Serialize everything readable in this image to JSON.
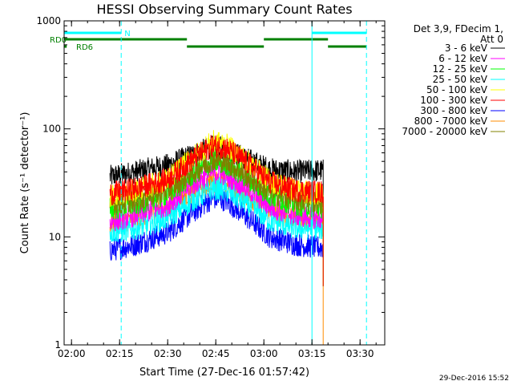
{
  "chart_data": {
    "type": "line",
    "title": "HESSI Observing Summary Count Rates",
    "xlabel": "Start Time (27-Dec-16 01:57:42)",
    "ylabel": "Count Rate (s⁻¹ detector⁻¹)",
    "y_scale": "log",
    "ylim": [
      1,
      1000
    ],
    "xlim": [
      "01:57:42",
      "03:37:42"
    ],
    "x_ticks": [
      "02:00",
      "02:15",
      "02:30",
      "02:45",
      "03:00",
      "03:15",
      "03:30"
    ],
    "y_ticks": [
      "1",
      "10",
      "100",
      "1000"
    ],
    "legend": {
      "header": [
        "Det 3,9, FDecim 1,",
        "Att 0"
      ],
      "placement": "right, outside plot"
    },
    "series": [
      {
        "name": "3 - 6 keV",
        "color": "#000000",
        "values": [
          {
            "x": "02:12",
            "y": 36
          },
          {
            "x": "02:20",
            "y": 40
          },
          {
            "x": "02:30",
            "y": 46
          },
          {
            "x": "02:38",
            "y": 58
          },
          {
            "x": "02:44",
            "y": 68
          },
          {
            "x": "02:48",
            "y": 66
          },
          {
            "x": "02:55",
            "y": 52
          },
          {
            "x": "03:02",
            "y": 42
          },
          {
            "x": "03:10",
            "y": 40
          },
          {
            "x": "03:17",
            "y": 41
          }
        ]
      },
      {
        "name": "6 - 12 keV",
        "color": "#ff00ff",
        "values": [
          {
            "x": "02:12",
            "y": 14
          },
          {
            "x": "02:20",
            "y": 16
          },
          {
            "x": "02:30",
            "y": 20
          },
          {
            "x": "02:38",
            "y": 31
          },
          {
            "x": "02:44",
            "y": 40
          },
          {
            "x": "02:48",
            "y": 38
          },
          {
            "x": "02:55",
            "y": 28
          },
          {
            "x": "03:02",
            "y": 19
          },
          {
            "x": "03:10",
            "y": 16
          },
          {
            "x": "03:17",
            "y": 15
          }
        ]
      },
      {
        "name": "12 - 25 keV",
        "color": "#00ff00",
        "values": [
          {
            "x": "02:12",
            "y": 18
          },
          {
            "x": "02:20",
            "y": 20
          },
          {
            "x": "02:30",
            "y": 25
          },
          {
            "x": "02:38",
            "y": 38
          },
          {
            "x": "02:44",
            "y": 50
          },
          {
            "x": "02:48",
            "y": 48
          },
          {
            "x": "02:55",
            "y": 35
          },
          {
            "x": "03:02",
            "y": 24
          },
          {
            "x": "03:10",
            "y": 20
          },
          {
            "x": "03:17",
            "y": 19
          }
        ]
      },
      {
        "name": "25 - 50 keV",
        "color": "#00ffff",
        "values": [
          {
            "x": "02:12",
            "y": 11
          },
          {
            "x": "02:20",
            "y": 12
          },
          {
            "x": "02:30",
            "y": 15
          },
          {
            "x": "02:38",
            "y": 22
          },
          {
            "x": "02:44",
            "y": 28
          },
          {
            "x": "02:48",
            "y": 27
          },
          {
            "x": "02:55",
            "y": 20
          },
          {
            "x": "03:02",
            "y": 14
          },
          {
            "x": "03:10",
            "y": 12
          },
          {
            "x": "03:17",
            "y": 12
          }
        ]
      },
      {
        "name": "50 - 100 keV",
        "color": "#ffff00",
        "values": [
          {
            "x": "02:12",
            "y": 24
          },
          {
            "x": "02:20",
            "y": 27
          },
          {
            "x": "02:30",
            "y": 34
          },
          {
            "x": "02:38",
            "y": 55
          },
          {
            "x": "02:44",
            "y": 76
          },
          {
            "x": "02:48",
            "y": 72
          },
          {
            "x": "02:55",
            "y": 50
          },
          {
            "x": "03:02",
            "y": 33
          },
          {
            "x": "03:10",
            "y": 27
          },
          {
            "x": "03:17",
            "y": 25
          }
        ]
      },
      {
        "name": "100 - 300 keV",
        "color": "#ff0000",
        "values": [
          {
            "x": "02:12",
            "y": 25
          },
          {
            "x": "02:20",
            "y": 28
          },
          {
            "x": "02:30",
            "y": 34
          },
          {
            "x": "02:38",
            "y": 53
          },
          {
            "x": "02:44",
            "y": 70
          },
          {
            "x": "02:48",
            "y": 67
          },
          {
            "x": "02:55",
            "y": 48
          },
          {
            "x": "03:02",
            "y": 32
          },
          {
            "x": "03:10",
            "y": 27
          },
          {
            "x": "03:17",
            "y": 26
          }
        ]
      },
      {
        "name": "300 - 800 keV",
        "color": "#0000ff",
        "values": [
          {
            "x": "02:12",
            "y": 7.5
          },
          {
            "x": "02:20",
            "y": 8.5
          },
          {
            "x": "02:30",
            "y": 11
          },
          {
            "x": "02:38",
            "y": 17
          },
          {
            "x": "02:44",
            "y": 23
          },
          {
            "x": "02:48",
            "y": 22
          },
          {
            "x": "02:55",
            "y": 15
          },
          {
            "x": "03:02",
            "y": 10
          },
          {
            "x": "03:10",
            "y": 8.5
          },
          {
            "x": "03:17",
            "y": 8
          }
        ]
      },
      {
        "name": "800 - 7000 keV",
        "color": "#ff8c00",
        "values": [
          {
            "x": "02:12",
            "y": 13
          },
          {
            "x": "02:20",
            "y": 15
          },
          {
            "x": "02:30",
            "y": 19
          },
          {
            "x": "02:38",
            "y": 27
          },
          {
            "x": "02:44",
            "y": 33
          },
          {
            "x": "02:48",
            "y": 32
          },
          {
            "x": "02:55",
            "y": 24
          },
          {
            "x": "03:02",
            "y": 18
          },
          {
            "x": "03:10",
            "y": 15
          },
          {
            "x": "03:17",
            "y": 14
          }
        ]
      },
      {
        "name": "7000 - 20000 keV",
        "color": "#808000",
        "values": [
          {
            "x": "02:12",
            "y": 20
          },
          {
            "x": "02:20",
            "y": 22
          },
          {
            "x": "02:30",
            "y": 27
          },
          {
            "x": "02:38",
            "y": 40
          },
          {
            "x": "02:44",
            "y": 52
          },
          {
            "x": "02:48",
            "y": 50
          },
          {
            "x": "02:55",
            "y": 36
          },
          {
            "x": "03:02",
            "y": 26
          },
          {
            "x": "03:10",
            "y": 22
          },
          {
            "x": "03:17",
            "y": 21
          }
        ]
      }
    ],
    "night_label": "N",
    "saa_label": "RD6",
    "rd_label": "RD0",
    "night_color": "#00ffff",
    "rd_color": "#008000",
    "night_intervals": [
      [
        "01:57:42",
        "02:15:30"
      ],
      [
        "03:15:00",
        "03:32:00"
      ]
    ],
    "rd_intervals": [
      [
        "01:57:42",
        "02:36:00"
      ],
      [
        "03:00:00",
        "03:20:00"
      ]
    ],
    "saa_intervals": [
      [
        "01:57:42",
        "01:58:30"
      ],
      [
        "02:36:00",
        "03:00:00"
      ],
      [
        "03:20:00",
        "03:32:00"
      ]
    ],
    "solid_vlines": [
      "01:57:42",
      "03:15:00"
    ],
    "dashed_vlines": [
      "02:15:30",
      "03:32:00"
    ]
  },
  "timestamp": "29-Dec-2016 15:52"
}
